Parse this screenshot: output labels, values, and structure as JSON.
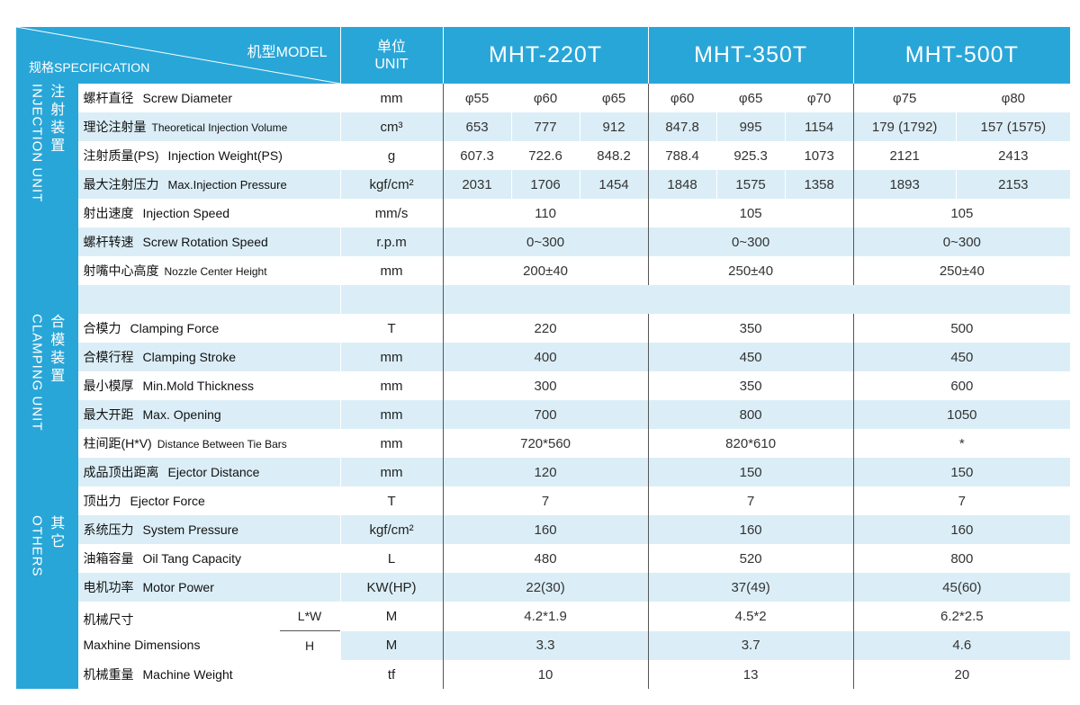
{
  "header": {
    "corner_model": "机型MODEL",
    "corner_spec": "规格SPECIFICATION",
    "unit_zh": "单位",
    "unit_en": "UNIT",
    "models": [
      "MHT-220T",
      "MHT-350T",
      "MHT-500T"
    ]
  },
  "sections": {
    "injection": {
      "zh": "注射装置",
      "en": "INJECTION UNIT"
    },
    "clamping": {
      "zh": "合模装置",
      "en": "CLAMPING UNIT"
    },
    "others": {
      "zh": "其它",
      "en": "OTHERS"
    }
  },
  "rows": [
    {
      "zh": "螺杆直径",
      "en": "Screw Diameter",
      "unit": "mm",
      "m1": [
        "φ55",
        "φ60",
        "φ65"
      ],
      "m2": [
        "φ60",
        "φ65",
        "φ70"
      ],
      "m3": [
        "φ75",
        "φ80"
      ]
    },
    {
      "zh": "理论注射量",
      "en": "Theoretical Injection Volume",
      "unit": "cm³",
      "m1": [
        "653",
        "777",
        "912"
      ],
      "m2": [
        "847.8",
        "995",
        "1154"
      ],
      "m3": [
        "179 (1792)",
        "157 (1575)"
      ]
    },
    {
      "zh": "注射质量(PS)",
      "en": "Injection Weight(PS)",
      "unit": "g",
      "m1": [
        "607.3",
        "722.6",
        "848.2"
      ],
      "m2": [
        "788.4",
        "925.3",
        "1073"
      ],
      "m3": [
        "2121",
        "2413"
      ]
    },
    {
      "zh": "最大注射压力",
      "en": "Max.Injection Pressure",
      "unit": "kgf/cm²",
      "m1": [
        "2031",
        "1706",
        "1454"
      ],
      "m2": [
        "1848",
        "1575",
        "1358"
      ],
      "m3": [
        "1893",
        "2153"
      ]
    },
    {
      "zh": "射出速度",
      "en": "Injection Speed",
      "unit": "mm/s",
      "v": [
        "110",
        "105",
        "105"
      ]
    },
    {
      "zh": "螺杆转速",
      "en": "Screw Rotation Speed",
      "unit": "r.p.m",
      "v": [
        "0~300",
        "0~300",
        "0~300"
      ]
    },
    {
      "zh": "射嘴中心高度",
      "en": "Nozzle Center Height",
      "unit": "mm",
      "v": [
        "200±40",
        "250±40",
        "250±40"
      ]
    },
    {
      "zh": "合模力",
      "en": "Clamping Force",
      "unit": "T",
      "v": [
        "220",
        "350",
        "500"
      ]
    },
    {
      "zh": "合模行程",
      "en": "Clamping Stroke",
      "unit": "mm",
      "v": [
        "400",
        "450",
        "450"
      ]
    },
    {
      "zh": "最小模厚",
      "en": "Min.Mold Thickness",
      "unit": "mm",
      "v": [
        "300",
        "350",
        "600"
      ]
    },
    {
      "zh": "最大开距",
      "en": "Max. Opening",
      "unit": "mm",
      "v": [
        "700",
        "800",
        "1050"
      ]
    },
    {
      "zh": "柱间距(H*V)",
      "en": "Distance Between Tie Bars",
      "unit": "mm",
      "v": [
        "720*560",
        "820*610",
        "*"
      ]
    },
    {
      "zh": "成品顶出距离",
      "en": "Ejector Distance",
      "unit": "mm",
      "v": [
        "120",
        "150",
        "150"
      ]
    },
    {
      "zh": "顶出力",
      "en": "Ejector Force",
      "unit": "T",
      "v": [
        "7",
        "7",
        "7"
      ]
    },
    {
      "zh": "系统压力",
      "en": "System Pressure",
      "unit": "kgf/cm²",
      "v": [
        "160",
        "160",
        "160"
      ]
    },
    {
      "zh": "油箱容量",
      "en": "Oil Tang Capacity",
      "unit": "L",
      "v": [
        "480",
        "520",
        "800"
      ]
    },
    {
      "zh": "电机功率",
      "en": "Motor Power",
      "unit": "KW(HP)",
      "v": [
        "22(30)",
        "37(49)",
        "45(60)"
      ]
    },
    {
      "zh": "机械尺寸",
      "en": "Maxhine Dimensions",
      "sub1": "L*W",
      "sub2": "H",
      "unit1": "M",
      "unit2": "M",
      "v1": [
        "4.2*1.9",
        "4.5*2",
        "6.2*2.5"
      ],
      "v2": [
        "3.3",
        "3.7",
        "4.6"
      ]
    },
    {
      "zh": "机械重量",
      "en": "Machine Weight",
      "unit": "tf",
      "v": [
        "10",
        "13",
        "20"
      ]
    }
  ]
}
